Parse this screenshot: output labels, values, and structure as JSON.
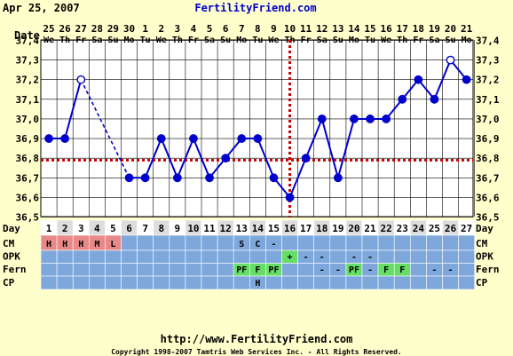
{
  "header": {
    "date": "Apr 25, 2007",
    "site": "FertilityFriend.com"
  },
  "footer": {
    "url": "http://www.FertilityFriend.com",
    "copyright": "Copyright 1998-2007 Tamtris Web Services Inc. - All Rights Reserved."
  },
  "chart_data": {
    "type": "line",
    "title": "",
    "row_labels": {
      "date": "Date",
      "day": "Day",
      "cm": "CM",
      "opk": "OPK",
      "fern": "Fern",
      "cp": "CP"
    },
    "dates": [
      "25",
      "26",
      "27",
      "28",
      "29",
      "30",
      "1",
      "2",
      "3",
      "4",
      "5",
      "6",
      "7",
      "8",
      "9",
      "10",
      "11",
      "12",
      "13",
      "14",
      "15",
      "16",
      "17",
      "18",
      "19",
      "20",
      "21"
    ],
    "weekdays": [
      "We",
      "Th",
      "Fr",
      "Sa",
      "Su",
      "Mo",
      "Tu",
      "We",
      "Th",
      "Fr",
      "Sa",
      "Su",
      "Mo",
      "Tu",
      "We",
      "Th",
      "Fr",
      "Sa",
      "Su",
      "Mo",
      "Tu",
      "We",
      "Th",
      "Fr",
      "Sa",
      "Su",
      "Mo"
    ],
    "days": [
      1,
      2,
      3,
      4,
      5,
      6,
      7,
      8,
      9,
      10,
      11,
      12,
      13,
      14,
      15,
      16,
      17,
      18,
      19,
      20,
      21,
      22,
      23,
      24,
      25,
      26,
      27
    ],
    "temperatures": [
      36.9,
      36.9,
      37.2,
      null,
      null,
      36.7,
      36.7,
      36.9,
      36.7,
      36.9,
      36.7,
      36.8,
      36.9,
      36.9,
      36.7,
      36.6,
      36.8,
      37.0,
      36.7,
      37.0,
      37.0,
      37.0,
      37.1,
      37.2,
      37.1,
      37.3,
      37.2
    ],
    "open_points": [
      3,
      26
    ],
    "dashed_segments": [
      [
        3,
        6
      ]
    ],
    "ylim": [
      36.5,
      37.4
    ],
    "yticks": [
      "36,5",
      "36,6",
      "36,7",
      "36,8",
      "36,9",
      "37,0",
      "37,1",
      "37,2",
      "37,3",
      "37,4"
    ],
    "coverline": 36.79,
    "ovulation_day": 16,
    "cm": [
      "H",
      "H",
      "H",
      "M",
      "L",
      "",
      "",
      "",
      "",
      "",
      "",
      "",
      "S",
      "C",
      "-",
      "",
      "",
      "",
      "",
      "",
      "",
      "",
      "",
      "",
      "",
      "",
      ""
    ],
    "opk": [
      "",
      "",
      "",
      "",
      "",
      "",
      "",
      "",
      "",
      "",
      "",
      "",
      "",
      "",
      "",
      "+",
      "-",
      "-",
      "",
      "-",
      "-",
      "",
      "",
      "",
      "",
      "",
      ""
    ],
    "fern": [
      "",
      "",
      "",
      "",
      "",
      "",
      "",
      "",
      "",
      "",
      "",
      "",
      "PF",
      "F",
      "PF",
      "",
      "",
      "-",
      "-",
      "PF",
      "-",
      "F",
      "F",
      "",
      "-",
      "-",
      ""
    ],
    "cp": [
      "",
      "",
      "",
      "",
      "",
      "",
      "",
      "",
      "",
      "",
      "",
      "",
      "",
      "H",
      "",
      "",
      "",
      "",
      "",
      "",
      "",
      "",
      "",
      "",
      "",
      "",
      ""
    ],
    "colors": {
      "background": "#FFFFCC",
      "plot_background": "#FFFFFF",
      "line": "#0000CC",
      "coverline": "#CC0000",
      "row_background": "#7EA8DC",
      "cm_highlight": "#E88888",
      "green_highlight": "#66DD66",
      "day_row_alt": "#DDDDDD"
    }
  }
}
